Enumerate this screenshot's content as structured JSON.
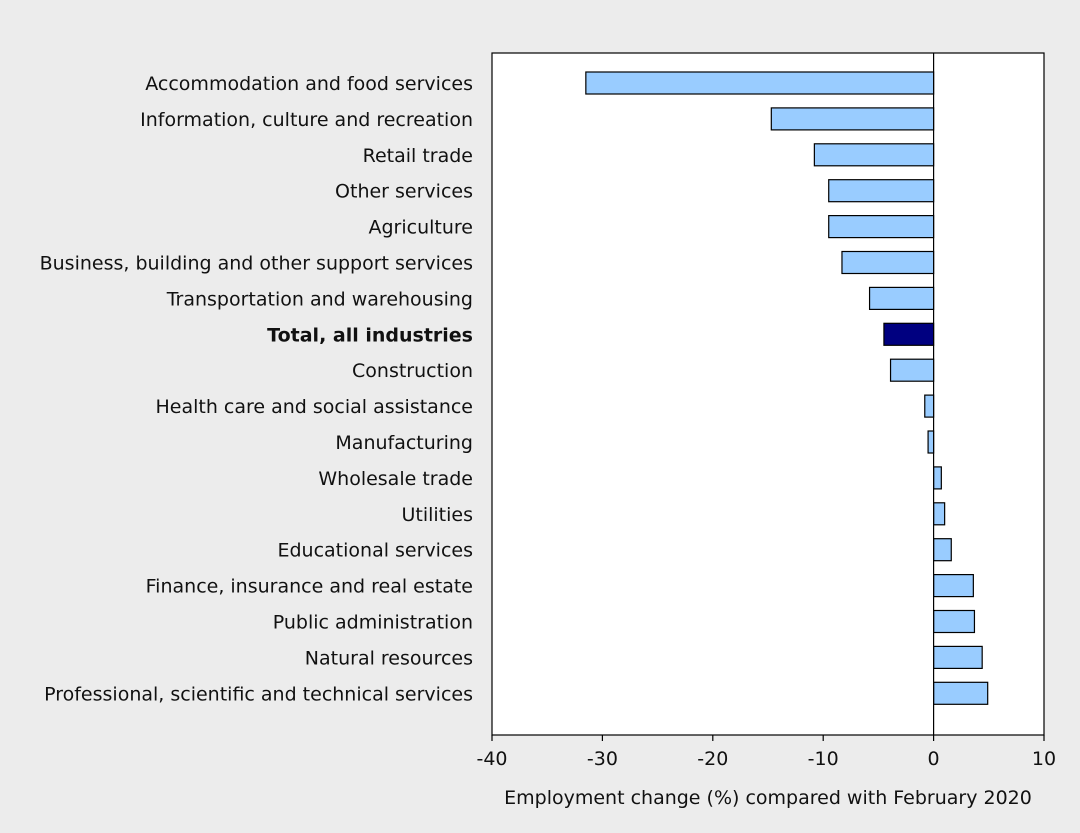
{
  "chart_data": {
    "type": "bar",
    "orientation": "horizontal",
    "xlabel": "Employment change (%) compared with February 2020",
    "ylabel": "",
    "xlim": [
      -40,
      10
    ],
    "xticks": [
      -40,
      -30,
      -20,
      -10,
      0,
      10
    ],
    "grid": false,
    "highlight_category": "Total, all industries",
    "colors": {
      "bar": "#99ccff",
      "highlight": "#000080",
      "outline": "#000000",
      "background": "#ececec",
      "plot_background": "#ffffff"
    },
    "categories": [
      "Accommodation and food services",
      "Information, culture and recreation",
      "Retail trade",
      "Other services",
      "Agriculture",
      "Business, building and other support services",
      "Transportation and warehousing",
      "Total, all industries",
      "Construction",
      "Health care and social assistance",
      "Manufacturing",
      "Wholesale trade",
      "Utilities",
      "Educational services",
      "Finance, insurance and real estate",
      "Public administration",
      "Natural resources",
      "Professional, scientific and technical services"
    ],
    "values": [
      -31.5,
      -14.7,
      -10.8,
      -9.5,
      -9.5,
      -8.3,
      -5.8,
      -4.5,
      -3.9,
      -0.8,
      -0.5,
      0.7,
      1.0,
      1.6,
      3.6,
      3.7,
      4.4,
      4.9
    ]
  }
}
